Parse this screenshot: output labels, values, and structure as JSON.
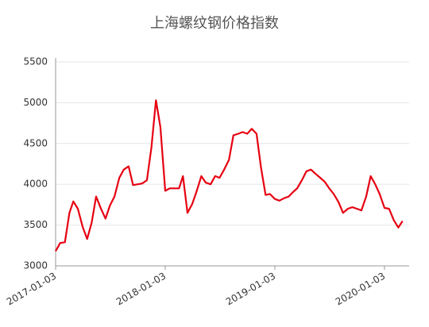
{
  "chart_data": {
    "type": "line",
    "title": "上海螺纹钢价格指数",
    "x": [
      "2017-01-03",
      "2017-01-18",
      "2017-02-03",
      "2017-02-18",
      "2017-03-03",
      "2017-03-18",
      "2017-04-03",
      "2017-04-18",
      "2017-05-03",
      "2017-05-18",
      "2017-06-03",
      "2017-06-18",
      "2017-07-03",
      "2017-07-18",
      "2017-08-03",
      "2017-08-18",
      "2017-09-03",
      "2017-09-18",
      "2017-10-03",
      "2017-10-18",
      "2017-11-03",
      "2017-11-18",
      "2017-12-03",
      "2017-12-18",
      "2018-01-03",
      "2018-01-18",
      "2018-02-03",
      "2018-02-18",
      "2018-03-03",
      "2018-03-18",
      "2018-04-03",
      "2018-04-18",
      "2018-05-03",
      "2018-05-18",
      "2018-06-03",
      "2018-06-18",
      "2018-07-03",
      "2018-07-18",
      "2018-08-03",
      "2018-08-18",
      "2018-09-03",
      "2018-09-18",
      "2018-10-03",
      "2018-10-18",
      "2018-11-03",
      "2018-11-18",
      "2018-12-03",
      "2018-12-18",
      "2019-01-03",
      "2019-01-18",
      "2019-02-03",
      "2019-02-18",
      "2019-03-03",
      "2019-03-18",
      "2019-04-03",
      "2019-04-18",
      "2019-05-03",
      "2019-05-18",
      "2019-06-03",
      "2019-06-18",
      "2019-07-03",
      "2019-07-18",
      "2019-08-03",
      "2019-08-18",
      "2019-09-03",
      "2019-09-18",
      "2019-10-03",
      "2019-10-18",
      "2019-11-03",
      "2019-11-18",
      "2019-12-03",
      "2019-12-18",
      "2020-01-03",
      "2020-01-18",
      "2020-02-03",
      "2020-02-18",
      "2020-03-03"
    ],
    "series": [
      {
        "name": "上海螺纹钢价格指数",
        "color": "#e60012",
        "values": [
          3180,
          3280,
          3290,
          3650,
          3790,
          3700,
          3480,
          3330,
          3530,
          3850,
          3700,
          3580,
          3740,
          3850,
          4080,
          4180,
          4220,
          3990,
          4000,
          4010,
          4050,
          4450,
          5030,
          4700,
          3920,
          3950,
          3950,
          3950,
          4100,
          3650,
          3760,
          3920,
          4100,
          4020,
          4000,
          4100,
          4080,
          4180,
          4300,
          4600,
          4620,
          4640,
          4620,
          4680,
          4620,
          4200,
          3870,
          3880,
          3820,
          3800,
          3830,
          3850,
          3900,
          3950,
          4050,
          4160,
          4180,
          4130,
          4080,
          4030,
          3950,
          3880,
          3780,
          3650,
          3700,
          3720,
          3700,
          3680,
          3850,
          4100,
          4000,
          3880,
          3710,
          3700,
          3560,
          3470,
          3550
        ]
      }
    ],
    "xlim": [
      "2017-01-03",
      "2020-03-25"
    ],
    "xticks": [
      "2017-01-03",
      "2018-01-03",
      "2019-01-03",
      "2020-01-03"
    ],
    "ylim": [
      3000,
      5500
    ],
    "yticks": [
      3000,
      3500,
      4000,
      4500,
      5000,
      5500
    ],
    "grid": true
  }
}
